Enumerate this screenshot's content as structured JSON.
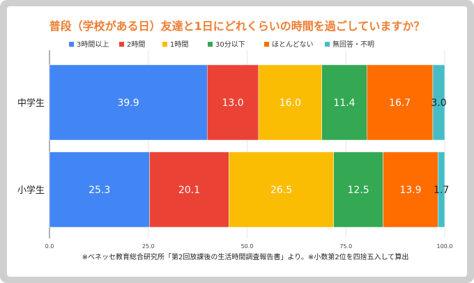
{
  "chart_data": {
    "type": "bar",
    "orientation": "horizontal",
    "stacked": true,
    "title": "普段（学校がある日）友達と1日にどれくらいの時間を過ごしていますか？",
    "categories": [
      "中学生",
      "小学生"
    ],
    "series": [
      {
        "name": "3時間以上",
        "color": "#4285f4",
        "values": [
          39.9,
          25.3
        ]
      },
      {
        "name": "2時間",
        "color": "#ea4335",
        "values": [
          13.0,
          20.1
        ]
      },
      {
        "name": "1時間",
        "color": "#fbbc04",
        "values": [
          16.0,
          26.5
        ]
      },
      {
        "name": "30分以下",
        "color": "#34a853",
        "values": [
          11.4,
          12.5
        ]
      },
      {
        "name": "ほとんどない",
        "color": "#ff6d01",
        "values": [
          16.7,
          13.9
        ]
      },
      {
        "name": "無回答・不明",
        "color": "#46bdc6",
        "values": [
          3.0,
          1.7
        ]
      }
    ],
    "xlim": [
      0,
      100
    ],
    "xticks": [
      "0.0",
      "25.0",
      "50.0",
      "75.0",
      "100.0"
    ],
    "xtick_values": [
      0,
      25,
      50,
      75,
      100
    ],
    "legend_position": "top",
    "source_note": "※ベネッセ教育総合研究所「第2回放課後の生活時間調査報告書」より。※小数第2位を四捨五入して算出"
  }
}
